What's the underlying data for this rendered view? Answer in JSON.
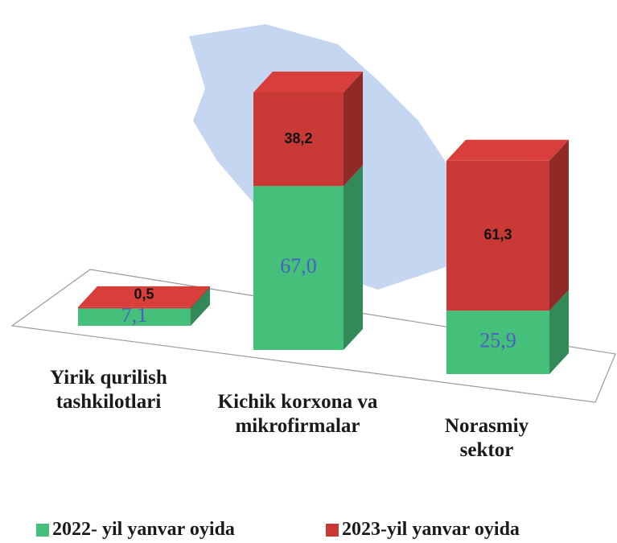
{
  "chart_data": {
    "type": "bar3d_stacked",
    "categories": [
      "Yirik qurilish tashkilotlari",
      "Kichik korxona va mikrofirmalar",
      "Norasmiy sektor"
    ],
    "series": [
      {
        "name": "2022- yil yanvar oyida",
        "color": "#45c07a",
        "values": [
          7.1,
          67.0,
          25.9
        ],
        "value_labels": [
          "7,1",
          "67,0",
          "25,9"
        ]
      },
      {
        "name": "2023-yil yanvar oyida",
        "color": "#c93a36",
        "values": [
          0.5,
          38.2,
          61.3
        ],
        "value_labels": [
          "0,5",
          "38,2",
          "61,3"
        ]
      }
    ]
  }
}
